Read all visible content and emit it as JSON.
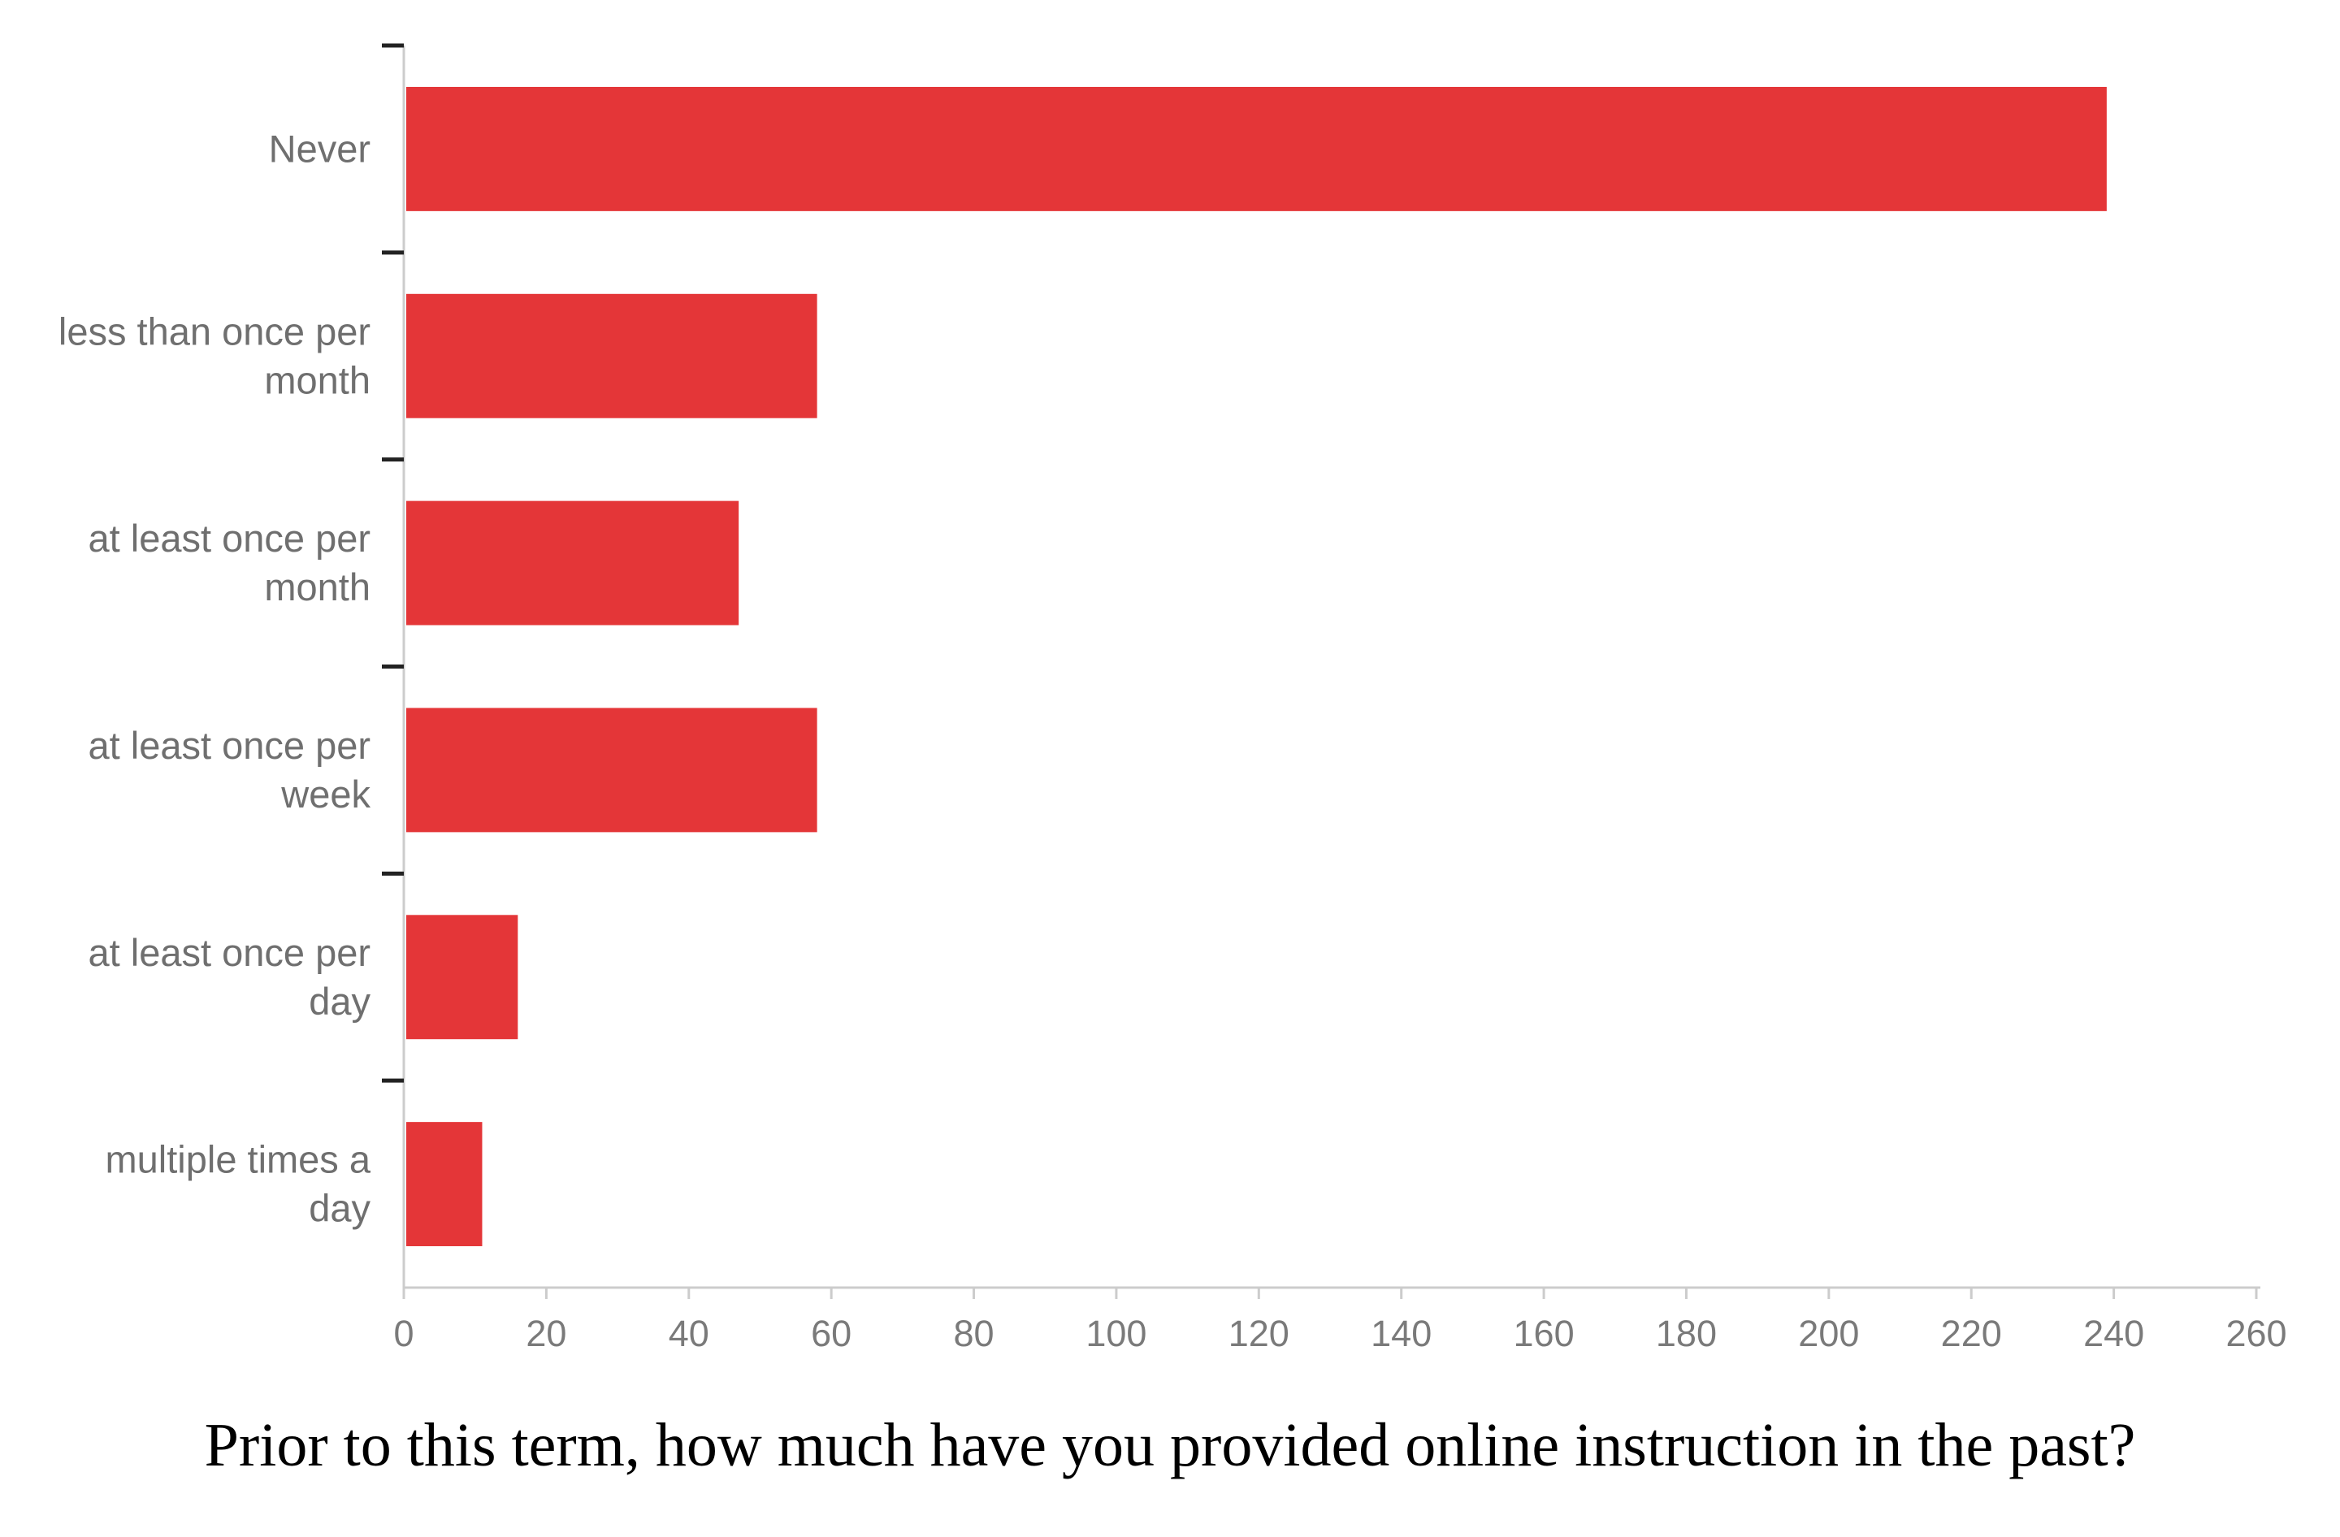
{
  "chart_data": {
    "type": "bar",
    "orientation": "horizontal",
    "categories": [
      "Never",
      "less than once per month",
      "at least once per month",
      "at least once per week",
      "at least once per day",
      "multiple times a day"
    ],
    "category_label_lines": [
      [
        "Never"
      ],
      [
        "less than once per",
        "month"
      ],
      [
        "at least once per",
        "month"
      ],
      [
        "at least once per",
        "week"
      ],
      [
        "at least once per",
        "day"
      ],
      [
        "multiple times a",
        "day"
      ]
    ],
    "values": [
      239,
      58,
      47,
      58,
      16,
      11
    ],
    "xlim": [
      0,
      260
    ],
    "xticks": [
      0,
      20,
      40,
      60,
      80,
      100,
      120,
      140,
      160,
      180,
      200,
      220,
      240,
      260
    ],
    "caption": "Prior to this term, how much have you provided online instruction in the past?",
    "grid": false,
    "legend": "none",
    "bar_color": "#e43638",
    "axis_color": "#cccccc",
    "text_color": "#6f6f6f"
  }
}
